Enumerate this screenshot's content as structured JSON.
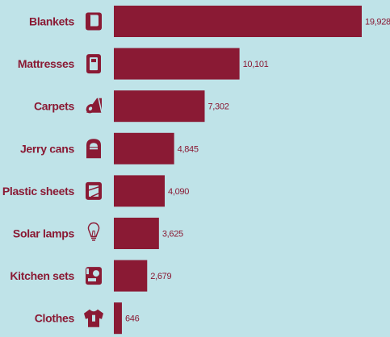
{
  "chart_data": {
    "type": "bar",
    "orientation": "horizontal",
    "categories": [
      "Blankets",
      "Mattresses",
      "Carpets",
      "Jerry cans",
      "Plastic sheets",
      "Solar lamps",
      "Kitchen sets",
      "Clothes"
    ],
    "values": [
      19928,
      10101,
      7302,
      4845,
      4090,
      3625,
      2679,
      646
    ],
    "value_labels": [
      "19,928",
      "10,101",
      "7,302",
      "4,845",
      "4,090",
      "3,625",
      "2,679",
      "646"
    ],
    "icons": [
      "blanket-icon",
      "mattress-icon",
      "carpet-icon",
      "jerry-can-icon",
      "plastic-sheet-icon",
      "solar-lamp-icon",
      "kitchen-set-icon",
      "clothes-icon"
    ],
    "xlim": [
      0,
      19928
    ],
    "grid": false,
    "legend": "none",
    "colors": {
      "bar": "#8a1a34",
      "background": "#bfe3e8",
      "text": "#8a1a34"
    }
  }
}
